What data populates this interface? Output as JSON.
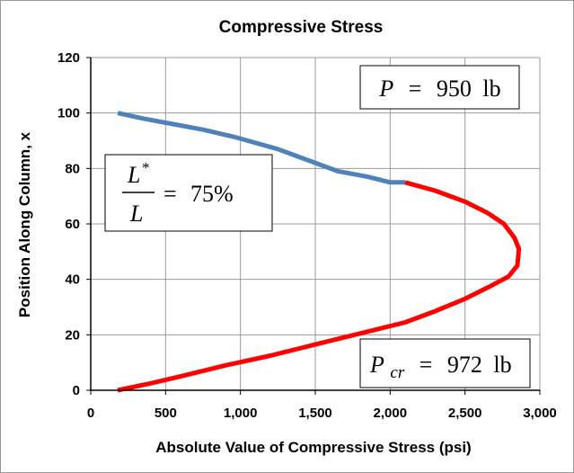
{
  "chart_data": {
    "type": "line",
    "title": "Compressive Stress",
    "xlabel": "Absolute Value of Compressive Stress (psi)",
    "ylabel": "Position Along Column, x",
    "xlim": [
      0,
      3000
    ],
    "ylim": [
      0,
      120
    ],
    "xticks": [
      "0",
      "500",
      "1,000",
      "1,500",
      "2,000",
      "2,500",
      "3,000"
    ],
    "yticks": [
      "0",
      "20",
      "40",
      "60",
      "80",
      "100",
      "120"
    ],
    "grid": true,
    "series": [
      {
        "color": "#4f81bd",
        "points": [
          [
            180,
            100
          ],
          [
            350,
            98
          ],
          [
            550,
            96
          ],
          [
            750,
            94
          ],
          [
            950,
            91.5
          ],
          [
            1050,
            90
          ],
          [
            1250,
            87
          ],
          [
            1450,
            83
          ],
          [
            1650,
            79
          ],
          [
            1850,
            77
          ],
          [
            2000,
            75
          ],
          [
            2100,
            75
          ]
        ]
      },
      {
        "color": "#ff0000",
        "points": [
          [
            2100,
            75
          ],
          [
            2300,
            72
          ],
          [
            2500,
            68
          ],
          [
            2650,
            64
          ],
          [
            2760,
            60
          ],
          [
            2830,
            55
          ],
          [
            2860,
            51
          ],
          [
            2850,
            45
          ],
          [
            2790,
            41
          ],
          [
            2650,
            37
          ],
          [
            2500,
            33
          ],
          [
            2300,
            28.5
          ],
          [
            2100,
            24.5
          ],
          [
            1800,
            20.5
          ],
          [
            1500,
            16.5
          ],
          [
            1200,
            12.5
          ],
          [
            900,
            9
          ],
          [
            600,
            5
          ],
          [
            400,
            2.5
          ],
          [
            180,
            0
          ]
        ]
      }
    ],
    "annotations": {
      "load": {
        "symbol": "P",
        "equals": "=",
        "value": "950",
        "unit": "lb"
      },
      "ratio": {
        "numerator": "L",
        "superscript": "*",
        "denominator": "L",
        "equals": "=",
        "value": "75%"
      },
      "critical": {
        "symbol": "P",
        "subscript": "cr",
        "equals": "=",
        "value": "972",
        "unit": "lb"
      }
    }
  }
}
